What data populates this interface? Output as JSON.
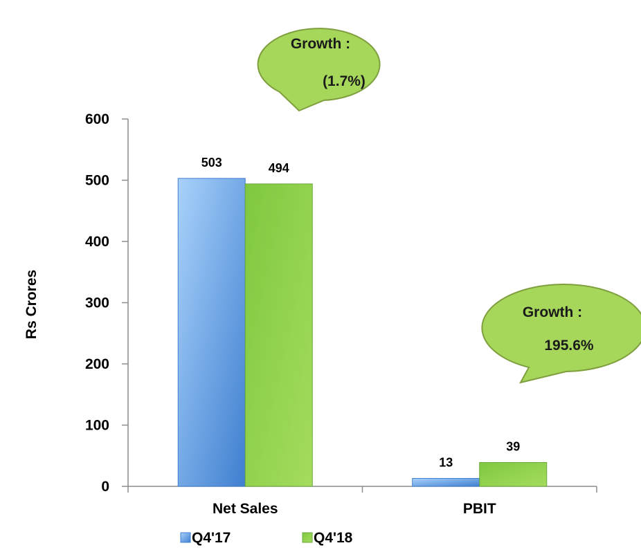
{
  "chart_data": {
    "type": "bar",
    "categories": [
      "Net Sales",
      "PBIT"
    ],
    "series": [
      {
        "name": "Q4'17",
        "values": [
          503,
          13
        ],
        "color": "#5b9bd5"
      },
      {
        "name": "Q4'18",
        "values": [
          494,
          39
        ],
        "color": "#92d050"
      }
    ],
    "data_labels": [
      [
        "503",
        "13"
      ],
      [
        "494",
        "39"
      ]
    ],
    "ylabel": "Rs Crores",
    "xlabel": "",
    "ylim": [
      0,
      600
    ],
    "yticks": [
      "0",
      "100",
      "200",
      "300",
      "400",
      "500",
      "600"
    ],
    "legend_position": "bottom",
    "grid": false
  },
  "callouts": [
    {
      "line1": "Growth :",
      "line2": "(1.7%)"
    },
    {
      "line1": "Growth :",
      "line2": "195.6%"
    }
  ],
  "colors": {
    "callout_fill": "#a6d65a",
    "callout_stroke": "#7f9f3f"
  }
}
